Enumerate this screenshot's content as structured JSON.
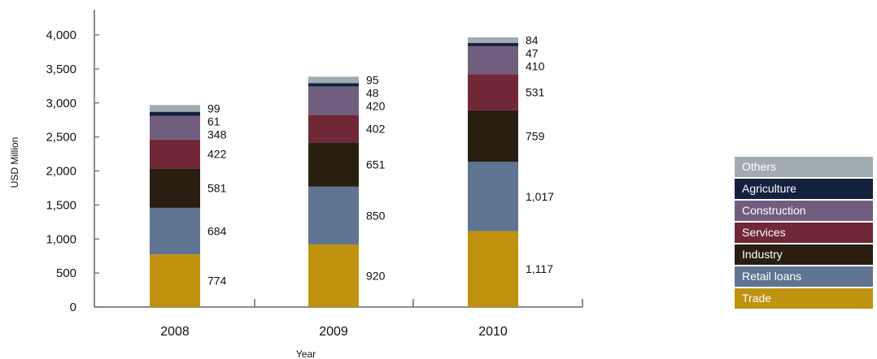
{
  "chart_data": {
    "type": "bar",
    "stacked": true,
    "categories": [
      "2008",
      "2009",
      "2010"
    ],
    "xlabel": "Year",
    "ylabel": "USD Million",
    "ylim": [
      0,
      4000
    ],
    "yticks": [
      0,
      500,
      1000,
      1500,
      2000,
      2500,
      3000,
      3500,
      4000
    ],
    "ytick_labels": [
      "0",
      "500",
      "1,000",
      "1,500",
      "2,000",
      "2,500",
      "3,000",
      "3,500",
      "4,000"
    ],
    "legend_position": "right",
    "series": [
      {
        "name": "Trade",
        "color": "#BF9210",
        "values": [
          774,
          920,
          1117
        ],
        "labels": [
          "774",
          "920",
          "1,117"
        ]
      },
      {
        "name": "Retail loans",
        "color": "#5E7491",
        "values": [
          684,
          850,
          1017
        ],
        "labels": [
          "684",
          "850",
          "1,017"
        ]
      },
      {
        "name": "Industry",
        "color": "#2A1E12",
        "values": [
          581,
          651,
          759
        ],
        "labels": [
          "581",
          "651",
          "759"
        ]
      },
      {
        "name": "Services",
        "color": "#702836",
        "values": [
          422,
          402,
          531
        ],
        "labels": [
          "422",
          "402",
          "531"
        ]
      },
      {
        "name": "Construction",
        "color": "#715E7F",
        "values": [
          348,
          420,
          410
        ],
        "labels": [
          "348",
          "420",
          "410"
        ]
      },
      {
        "name": "Agriculture",
        "color": "#13213F",
        "values": [
          61,
          48,
          47
        ],
        "labels": [
          "61",
          "48",
          "47"
        ]
      },
      {
        "name": "Others",
        "color": "#A0ACB1",
        "values": [
          99,
          95,
          84
        ],
        "labels": [
          "99",
          "95",
          "84"
        ]
      }
    ]
  }
}
